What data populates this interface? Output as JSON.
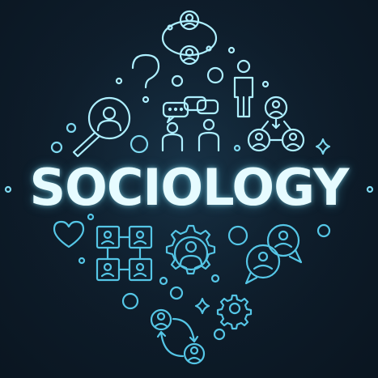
{
  "title": "SOCIOLOGY",
  "colors": {
    "background": "#0e1d2b",
    "line_top": "#aeefff",
    "line_bottom": "#55c6e6",
    "title_glow": "#96ebff"
  },
  "icons": [
    "people-network-icon",
    "question-mark-icon",
    "standing-person-icon",
    "magnifier-person-icon",
    "chat-bubbles-icon",
    "people-pair-icon",
    "hierarchy-icon",
    "sparkle-icon",
    "heart-icon",
    "org-chart-icon",
    "gear-person-icon",
    "chat-avatars-icon",
    "small-gear-icon",
    "exchange-arrows-icon"
  ]
}
